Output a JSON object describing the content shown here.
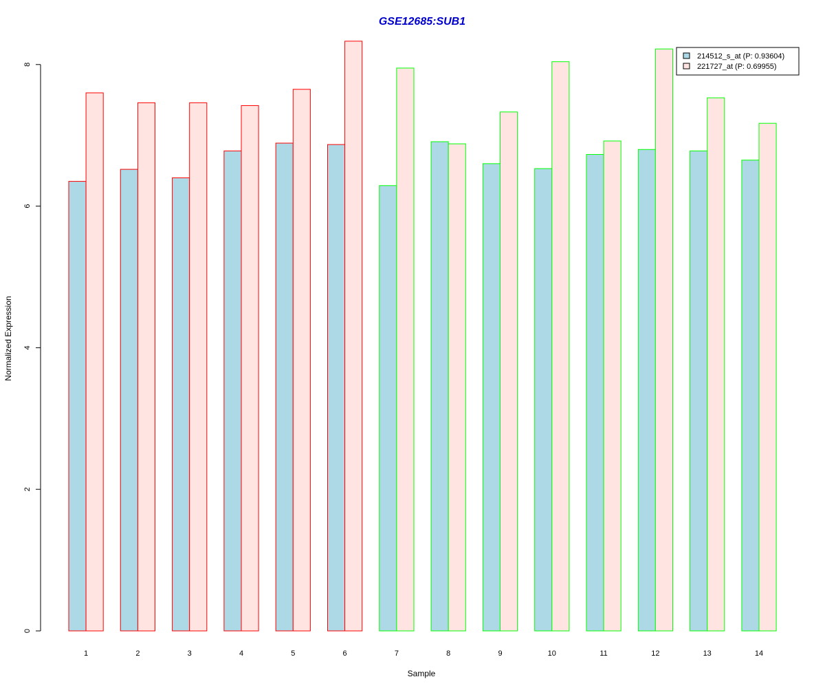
{
  "chart_data": {
    "type": "bar",
    "title": "GSE12685:SUB1",
    "xlabel": "Sample",
    "ylabel": "Normalized Expression",
    "ylim": [
      0,
      8.35
    ],
    "yticks": [
      "0",
      "2",
      "4",
      "6",
      "8"
    ],
    "categories": [
      "1",
      "2",
      "3",
      "4",
      "5",
      "6",
      "7",
      "8",
      "9",
      "10",
      "11",
      "12",
      "13",
      "14"
    ],
    "group_border_colors": [
      "#ff0000",
      "#ff0000",
      "#ff0000",
      "#ff0000",
      "#ff0000",
      "#ff0000",
      "#00ff00",
      "#00ff00",
      "#00ff00",
      "#00ff00",
      "#00ff00",
      "#00ff00",
      "#00ff00",
      "#00ff00"
    ],
    "series": [
      {
        "name": "214512_s_at (P: 0.93604)",
        "fill": "#add8e6",
        "values": [
          6.35,
          6.52,
          6.4,
          6.78,
          6.89,
          6.87,
          6.29,
          6.91,
          6.6,
          6.53,
          6.73,
          6.8,
          6.78,
          6.65
        ]
      },
      {
        "name": "221727_at (P: 0.69955)",
        "fill": "#ffe4e1",
        "values": [
          7.6,
          7.46,
          7.46,
          7.42,
          7.65,
          8.33,
          7.95,
          6.88,
          7.33,
          8.04,
          6.92,
          8.22,
          7.53,
          7.17
        ]
      }
    ],
    "legend_position": "top-right",
    "grid": false,
    "colors": {
      "title": "#0000cc",
      "axis": "#000000"
    }
  }
}
